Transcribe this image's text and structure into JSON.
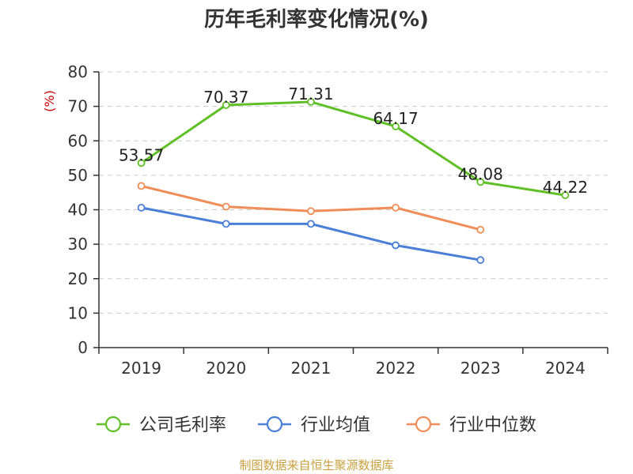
{
  "chart_data": {
    "type": "line",
    "title": "历年毛利率变化情况(%)",
    "ylabel": "(%)",
    "ylim": [
      0,
      80
    ],
    "yticks": [
      0,
      10,
      20,
      30,
      40,
      50,
      60,
      70,
      80
    ],
    "categories": [
      "2019",
      "2020",
      "2021",
      "2022",
      "2023",
      "2024"
    ],
    "grid": true,
    "legend_position": "bottom",
    "series": [
      {
        "name": "公司毛利率",
        "color": "#5ec025",
        "values": [
          53.57,
          70.37,
          71.31,
          64.17,
          48.08,
          44.22
        ],
        "labels": [
          "53.57",
          "70.37",
          "71.31",
          "64.17",
          "48.08",
          "44.22"
        ]
      },
      {
        "name": "行业均值",
        "color": "#4a7fd8",
        "values": [
          40.6,
          35.9,
          35.9,
          29.7,
          25.4,
          null
        ]
      },
      {
        "name": "行业中位数",
        "color": "#f08c57",
        "values": [
          46.9,
          40.9,
          39.6,
          40.6,
          34.2,
          null
        ]
      }
    ]
  },
  "source_text": "制图数据来自恒生聚源数据库",
  "colors": {
    "axis": "#333333",
    "grid": "#cccccc",
    "ylabel": "#cc0000",
    "source": "#c8a040"
  }
}
